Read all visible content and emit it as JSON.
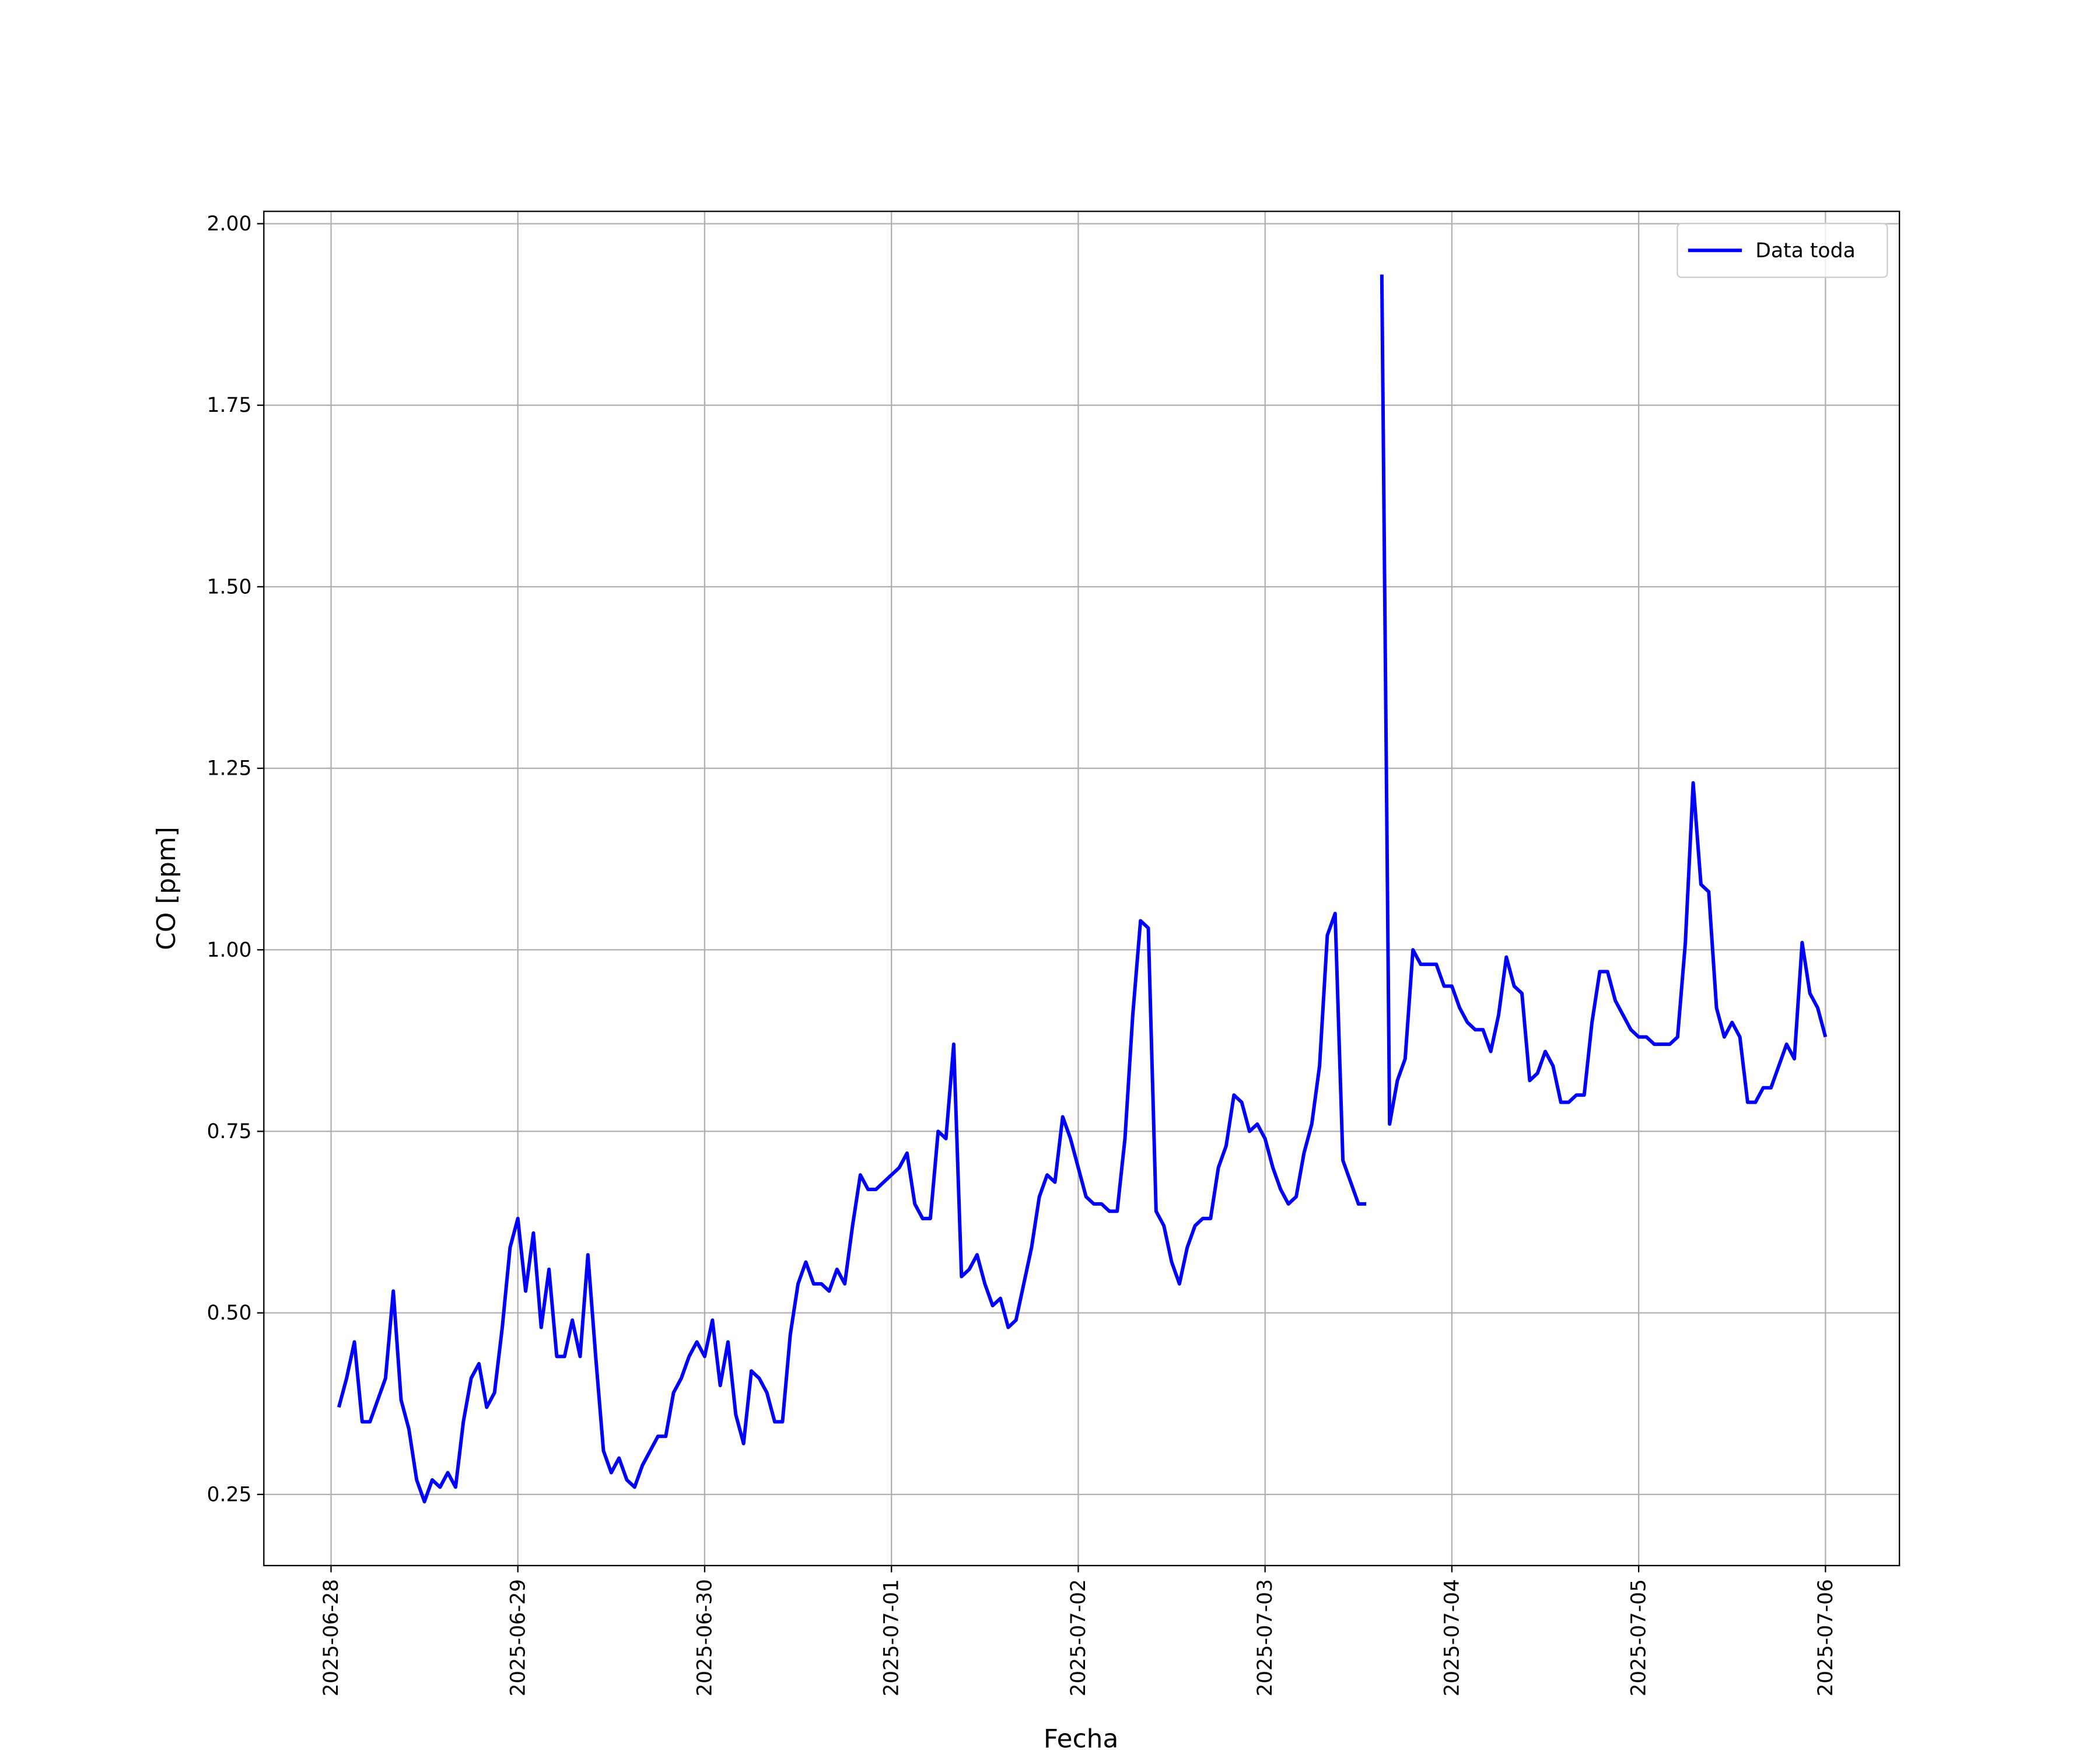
{
  "chart_data": {
    "type": "line",
    "xlabel": "Fecha",
    "ylabel": "CO [ppm]",
    "x": [
      "2025-06-28 01:00",
      "2025-06-28 02:00",
      "2025-06-28 03:00",
      "2025-06-28 04:00",
      "2025-06-28 05:00",
      "2025-06-28 06:00",
      "2025-06-28 07:00",
      "2025-06-28 08:00",
      "2025-06-28 09:00",
      "2025-06-28 10:00",
      "2025-06-28 11:00",
      "2025-06-28 12:00",
      "2025-06-28 13:00",
      "2025-06-28 14:00",
      "2025-06-28 15:00",
      "2025-06-28 16:00",
      "2025-06-28 17:00",
      "2025-06-28 18:00",
      "2025-06-28 19:00",
      "2025-06-28 20:00",
      "2025-06-28 21:00",
      "2025-06-28 22:00",
      "2025-06-28 23:00",
      "2025-06-29 00:00",
      "2025-06-29 01:00",
      "2025-06-29 02:00",
      "2025-06-29 03:00",
      "2025-06-29 04:00",
      "2025-06-29 05:00",
      "2025-06-29 06:00",
      "2025-06-29 07:00",
      "2025-06-29 08:00",
      "2025-06-29 09:00",
      "2025-06-29 10:00",
      "2025-06-29 11:00",
      "2025-06-29 12:00",
      "2025-06-29 13:00",
      "2025-06-29 14:00",
      "2025-06-29 15:00",
      "2025-06-29 16:00",
      "2025-06-29 17:00",
      "2025-06-29 18:00",
      "2025-06-29 19:00",
      "2025-06-29 20:00",
      "2025-06-29 21:00",
      "2025-06-29 22:00",
      "2025-06-29 23:00",
      "2025-06-30 00:00",
      "2025-06-30 01:00",
      "2025-06-30 02:00",
      "2025-06-30 03:00",
      "2025-06-30 04:00",
      "2025-06-30 05:00",
      "2025-06-30 06:00",
      "2025-06-30 07:00",
      "2025-06-30 08:00",
      "2025-06-30 09:00",
      "2025-06-30 10:00",
      "2025-06-30 11:00",
      "2025-06-30 12:00",
      "2025-06-30 13:00",
      "2025-06-30 14:00",
      "2025-06-30 15:00",
      "2025-06-30 16:00",
      "2025-06-30 17:00",
      "2025-06-30 18:00",
      "2025-06-30 19:00",
      "2025-06-30 20:00",
      "2025-06-30 21:00",
      "2025-06-30 22:00",
      "2025-06-30 23:00",
      "2025-07-01 00:00",
      "2025-07-01 01:00",
      "2025-07-01 02:00",
      "2025-07-01 03:00",
      "2025-07-01 04:00",
      "2025-07-01 05:00",
      "2025-07-01 06:00",
      "2025-07-01 07:00",
      "2025-07-01 08:00",
      "2025-07-01 09:00",
      "2025-07-01 10:00",
      "2025-07-01 11:00",
      "2025-07-01 12:00",
      "2025-07-01 13:00",
      "2025-07-01 14:00",
      "2025-07-01 15:00",
      "2025-07-01 16:00",
      "2025-07-01 17:00",
      "2025-07-01 18:00",
      "2025-07-01 19:00",
      "2025-07-01 20:00",
      "2025-07-01 21:00",
      "2025-07-01 22:00",
      "2025-07-01 23:00",
      "2025-07-02 00:00",
      "2025-07-02 01:00",
      "2025-07-02 02:00",
      "2025-07-02 03:00",
      "2025-07-02 04:00",
      "2025-07-02 05:00",
      "2025-07-02 06:00",
      "2025-07-02 07:00",
      "2025-07-02 08:00",
      "2025-07-02 09:00",
      "2025-07-02 10:00",
      "2025-07-02 11:00",
      "2025-07-02 12:00",
      "2025-07-02 13:00",
      "2025-07-02 14:00",
      "2025-07-02 15:00",
      "2025-07-02 16:00",
      "2025-07-02 17:00",
      "2025-07-02 18:00",
      "2025-07-02 19:00",
      "2025-07-02 20:00",
      "2025-07-02 21:00",
      "2025-07-02 22:00",
      "2025-07-02 23:00",
      "2025-07-03 00:00",
      "2025-07-03 01:00",
      "2025-07-03 02:00",
      "2025-07-03 03:00",
      "2025-07-03 04:00",
      "2025-07-03 05:00",
      "2025-07-03 06:00",
      "2025-07-03 07:00",
      "2025-07-03 08:00",
      "2025-07-03 09:00",
      "2025-07-03 10:00",
      "2025-07-03 11:00",
      "2025-07-03 12:00",
      "2025-07-03 13:00",
      "2025-07-03 14:00",
      "2025-07-03 15:00",
      "2025-07-03 16:00",
      "2025-07-03 17:00",
      "2025-07-03 18:00",
      "2025-07-03 19:00",
      "2025-07-03 20:00",
      "2025-07-03 21:00",
      "2025-07-03 22:00",
      "2025-07-03 23:00",
      "2025-07-04 00:00",
      "2025-07-04 01:00",
      "2025-07-04 02:00",
      "2025-07-04 03:00",
      "2025-07-04 04:00",
      "2025-07-04 05:00",
      "2025-07-04 06:00",
      "2025-07-04 07:00",
      "2025-07-04 08:00",
      "2025-07-04 09:00",
      "2025-07-04 10:00",
      "2025-07-04 11:00",
      "2025-07-04 12:00",
      "2025-07-04 13:00",
      "2025-07-04 14:00",
      "2025-07-04 15:00",
      "2025-07-04 16:00",
      "2025-07-04 17:00",
      "2025-07-04 18:00",
      "2025-07-04 19:00",
      "2025-07-04 20:00",
      "2025-07-04 21:00",
      "2025-07-04 22:00",
      "2025-07-04 23:00",
      "2025-07-05 00:00",
      "2025-07-05 01:00",
      "2025-07-05 02:00",
      "2025-07-05 03:00",
      "2025-07-05 04:00",
      "2025-07-05 05:00",
      "2025-07-05 06:00",
      "2025-07-05 07:00",
      "2025-07-05 08:00",
      "2025-07-05 09:00",
      "2025-07-05 10:00",
      "2025-07-05 11:00",
      "2025-07-05 12:00",
      "2025-07-05 13:00",
      "2025-07-05 14:00",
      "2025-07-05 15:00",
      "2025-07-05 16:00",
      "2025-07-05 17:00",
      "2025-07-05 18:00",
      "2025-07-05 19:00",
      "2025-07-05 20:00",
      "2025-07-05 21:00",
      "2025-07-05 22:00",
      "2025-07-05 23:00",
      "2025-07-06 00:00"
    ],
    "series": [
      {
        "name": "Data toda",
        "color": "#0000ff",
        "values": [
          0.37,
          0.41,
          0.46,
          0.35,
          0.35,
          0.38,
          0.41,
          0.53,
          0.38,
          0.34,
          0.27,
          0.24,
          0.27,
          0.26,
          0.28,
          0.26,
          0.35,
          0.41,
          0.43,
          0.37,
          0.39,
          0.48,
          0.59,
          0.63,
          0.53,
          0.61,
          0.48,
          0.56,
          0.44,
          0.44,
          0.49,
          0.44,
          0.58,
          0.44,
          0.31,
          0.28,
          0.3,
          0.27,
          0.26,
          0.29,
          0.31,
          0.33,
          0.33,
          0.39,
          0.41,
          0.44,
          0.46,
          0.44,
          0.49,
          0.4,
          0.46,
          0.36,
          0.32,
          0.42,
          0.41,
          0.39,
          0.35,
          0.35,
          0.47,
          0.54,
          0.57,
          0.54,
          0.54,
          0.53,
          0.56,
          0.54,
          0.62,
          0.69,
          0.67,
          0.67,
          0.68,
          0.69,
          0.7,
          0.72,
          0.65,
          0.63,
          0.63,
          0.75,
          0.74,
          0.87,
          0.55,
          0.56,
          0.58,
          0.54,
          0.51,
          0.52,
          0.48,
          0.49,
          0.54,
          0.59,
          0.66,
          0.69,
          0.68,
          0.77,
          0.74,
          0.7,
          0.66,
          0.65,
          0.65,
          0.64,
          0.64,
          0.74,
          0.91,
          1.04,
          1.03,
          0.64,
          0.62,
          0.57,
          0.54,
          0.59,
          0.62,
          0.63,
          0.63,
          0.7,
          0.73,
          0.8,
          0.79,
          0.75,
          0.76,
          0.74,
          0.7,
          0.67,
          0.65,
          0.66,
          0.72,
          0.76,
          0.84,
          1.02,
          1.05,
          0.71,
          0.68,
          0.65,
          0.65,
          null,
          1.93,
          0.76,
          0.82,
          0.85,
          1.0,
          0.98,
          0.98,
          0.98,
          0.95,
          0.95,
          0.92,
          0.9,
          0.89,
          0.89,
          0.86,
          0.91,
          0.99,
          0.95,
          0.94,
          0.82,
          0.83,
          0.86,
          0.84,
          0.79,
          0.79,
          0.8,
          0.8,
          0.9,
          0.97,
          0.97,
          0.93,
          0.91,
          0.89,
          0.88,
          0.88,
          0.87,
          0.87,
          0.87,
          0.88,
          1.01,
          1.23,
          1.09,
          1.08,
          0.92,
          0.88,
          0.9,
          0.88,
          0.79,
          0.79,
          0.81,
          0.81,
          0.84,
          0.87,
          0.85,
          1.01,
          0.94,
          0.92,
          0.88
        ]
      }
    ],
    "xlim": [
      "2025-06-27 15:22",
      "2025-07-06 09:30"
    ],
    "xticks": [
      "2025-06-28",
      "2025-06-29",
      "2025-06-30",
      "2025-07-01",
      "2025-07-02",
      "2025-07-03",
      "2025-07-04",
      "2025-07-05",
      "2025-07-06"
    ],
    "ylim": [
      0.152,
      2.017
    ],
    "yticks": [
      0.25,
      {
        "value": 0.5,
        "label": "0.50"
      },
      0.75,
      {
        "value": 1,
        "label": "1.00"
      },
      1.25,
      {
        "value": 1.5,
        "label": "1.50"
      },
      1.75,
      {
        "value": 2,
        "label": "2.00"
      }
    ],
    "grid": true,
    "legend": "upper right"
  }
}
